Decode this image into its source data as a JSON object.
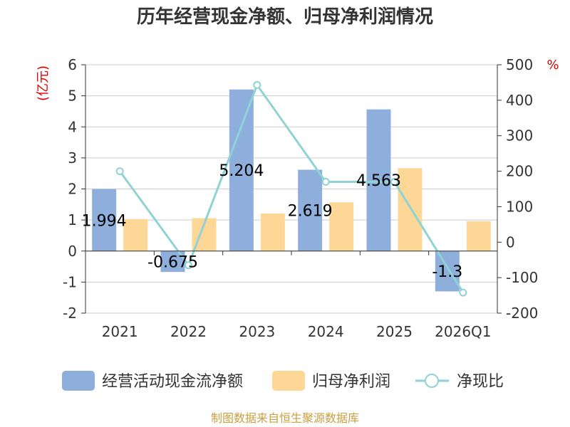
{
  "title": "历年经营现金净额、归母净利润情况",
  "source": "制图数据来自恒生聚源数据库",
  "colors": {
    "cash_flow": "#8eaedb",
    "net_profit": "#fdd796",
    "ratio": "#8fd3d6"
  },
  "chart_data": {
    "type": "bar",
    "title": "历年经营现金净额、归母净利润情况",
    "categories": [
      "2021",
      "2022",
      "2023",
      "2024",
      "2025",
      "2026Q1"
    ],
    "left_axis": {
      "label": "(亿元)",
      "ylim": [
        -2,
        6
      ],
      "ticks": [
        6,
        5,
        4,
        3,
        2,
        1,
        0,
        -1,
        -2
      ]
    },
    "right_axis": {
      "label": "%",
      "ylim": [
        -200,
        500
      ],
      "ticks": [
        500,
        400,
        300,
        200,
        100,
        0,
        -100,
        -200
      ]
    },
    "series": [
      {
        "name": "经营活动现金流净额",
        "type": "bar",
        "axis": "left",
        "values": [
          1.994,
          -0.675,
          5.204,
          2.619,
          4.563,
          -1.3
        ],
        "labels": [
          "1.994",
          "-0.675",
          "5.204",
          "2.619",
          "4.563",
          "-1.3"
        ]
      },
      {
        "name": "归母净利润",
        "type": "bar",
        "axis": "left",
        "values": [
          1.03,
          1.06,
          1.21,
          1.57,
          2.67,
          0.96
        ]
      },
      {
        "name": "净现比",
        "type": "line",
        "axis": "right",
        "values": [
          200,
          -65,
          443,
          170,
          170,
          -142
        ]
      }
    ],
    "grid": true,
    "legend": "bottom"
  }
}
